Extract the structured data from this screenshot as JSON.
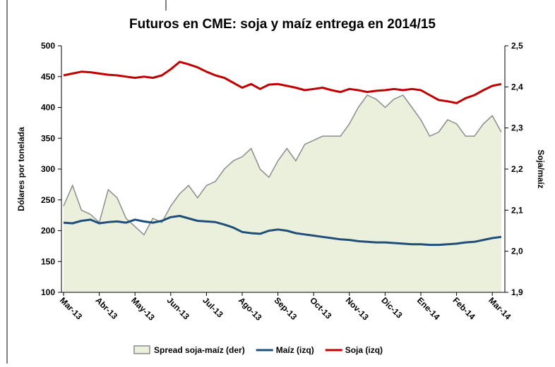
{
  "chart_data": {
    "type": "line",
    "title": "Futuros en CME: soja y maíz entrega en 2014/15",
    "y_label": "Dólares por tonelada",
    "y2_label": "Soja/maíz",
    "categories": [
      "Mar-13",
      null,
      null,
      null,
      "Abr-13",
      null,
      null,
      null,
      "May-13",
      null,
      null,
      null,
      "Jun-13",
      null,
      null,
      null,
      "Jul-13",
      null,
      null,
      null,
      "Ago-13",
      null,
      null,
      null,
      "Sep-13",
      null,
      null,
      null,
      "Oct-13",
      null,
      null,
      null,
      "Nov-13",
      null,
      null,
      null,
      "Dic-13",
      null,
      null,
      null,
      "Ene-14",
      null,
      null,
      null,
      "Feb-14",
      null,
      null,
      null,
      "Mar-14",
      null
    ],
    "series": [
      {
        "name": "Spread soja-maíz (der)",
        "color": "#8c8c8c",
        "fill": "#ebf0dc",
        "axis": "y2",
        "style": "area",
        "values": [
          2.11,
          2.16,
          2.1,
          2.09,
          2.07,
          2.15,
          2.13,
          2.08,
          2.06,
          2.04,
          2.08,
          2.07,
          2.11,
          2.14,
          2.16,
          2.13,
          2.16,
          2.17,
          2.2,
          2.22,
          2.23,
          2.25,
          2.2,
          2.18,
          2.22,
          2.25,
          2.22,
          2.26,
          2.27,
          2.28,
          2.28,
          2.28,
          2.31,
          2.35,
          2.38,
          2.37,
          2.35,
          2.37,
          2.38,
          2.35,
          2.32,
          2.28,
          2.29,
          2.32,
          2.31,
          2.28,
          2.28,
          2.31,
          2.33,
          2.29
        ]
      },
      {
        "name": "Maíz (izq)",
        "color": "#1f4e79",
        "axis": "y",
        "style": "line",
        "values": [
          213,
          212,
          216,
          218,
          212,
          214,
          215,
          213,
          218,
          215,
          213,
          216,
          222,
          224,
          220,
          216,
          215,
          214,
          210,
          205,
          198,
          196,
          195,
          200,
          202,
          200,
          196,
          194,
          192,
          190,
          188,
          186,
          185,
          183,
          182,
          181,
          181,
          180,
          179,
          178,
          178,
          177,
          177,
          178,
          179,
          181,
          182,
          185,
          188,
          190
        ]
      },
      {
        "name": "Soja (izq)",
        "color": "#c00000",
        "axis": "y",
        "style": "line",
        "values": [
          452,
          455,
          458,
          457,
          455,
          453,
          452,
          450,
          448,
          450,
          448,
          452,
          462,
          474,
          470,
          465,
          458,
          452,
          448,
          440,
          432,
          438,
          430,
          437,
          438,
          435,
          432,
          428,
          430,
          432,
          428,
          425,
          430,
          428,
          425,
          427,
          428,
          430,
          428,
          430,
          428,
          420,
          412,
          410,
          407,
          415,
          420,
          428,
          435,
          438
        ]
      }
    ],
    "ylim": [
      100,
      500
    ],
    "yticks": [
      100,
      150,
      200,
      250,
      300,
      350,
      400,
      450,
      500
    ],
    "y2lim": [
      1.9,
      2.5
    ],
    "y2ticks": [
      {
        "value": 1.9,
        "label": "1,9"
      },
      {
        "value": 2.0,
        "label": "2,0"
      },
      {
        "value": 2.1,
        "label": "2,1"
      },
      {
        "value": 2.2,
        "label": "2,2"
      },
      {
        "value": 2.3,
        "label": "2,3"
      },
      {
        "value": 2.4,
        "label": "2,4"
      },
      {
        "value": 2.5,
        "label": "2,5"
      }
    ],
    "legend": "bottom"
  }
}
